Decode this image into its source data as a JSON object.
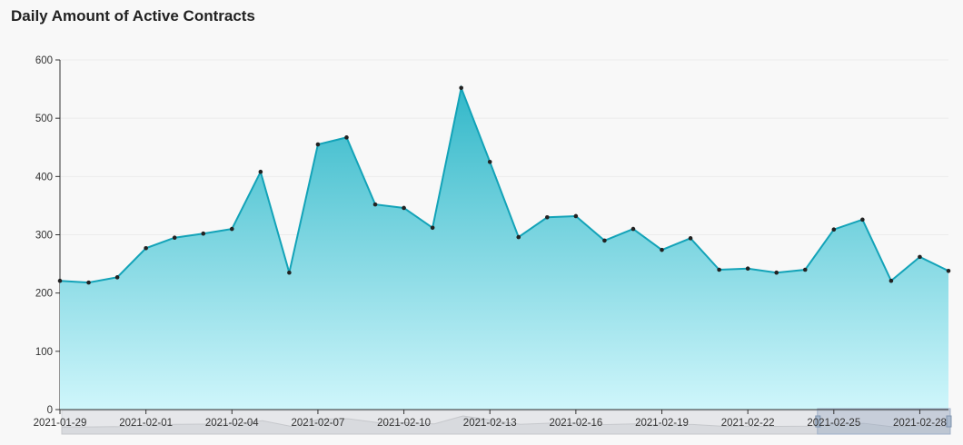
{
  "chart_data": {
    "type": "area",
    "title": "Daily Amount of Active Contracts",
    "xlabel": "",
    "ylabel": "",
    "ylim": [
      0,
      600
    ],
    "yticks": [
      0,
      100,
      200,
      300,
      400,
      500,
      600
    ],
    "xtick_labels": [
      "2021-01-29",
      "2021-02-01",
      "2021-02-04",
      "2021-02-07",
      "2021-02-10",
      "2021-02-13",
      "2021-02-16",
      "2021-02-19",
      "2021-02-22",
      "2021-02-25",
      "2021-02-28"
    ],
    "x": [
      "2021-01-29",
      "2021-01-30",
      "2021-01-31",
      "2021-02-01",
      "2021-02-02",
      "2021-02-03",
      "2021-02-04",
      "2021-02-05",
      "2021-02-06",
      "2021-02-07",
      "2021-02-08",
      "2021-02-09",
      "2021-02-10",
      "2021-02-11",
      "2021-02-12",
      "2021-02-13",
      "2021-02-14",
      "2021-02-15",
      "2021-02-16",
      "2021-02-17",
      "2021-02-18",
      "2021-02-19",
      "2021-02-20",
      "2021-02-21",
      "2021-02-22",
      "2021-02-23",
      "2021-02-24",
      "2021-02-25",
      "2021-02-26",
      "2021-02-27",
      "2021-02-28",
      "2021-03-01"
    ],
    "values": [
      221,
      218,
      227,
      277,
      295,
      302,
      310,
      408,
      235,
      455,
      467,
      352,
      346,
      312,
      552,
      425,
      296,
      330,
      332,
      290,
      310,
      274,
      294,
      240,
      242,
      235,
      240,
      309,
      326,
      221,
      262,
      238
    ],
    "grid": true,
    "colors": {
      "line": "#13a3b8",
      "fill_top": "#33b8c9",
      "fill_bottom": "#cff6fb",
      "point": "#222222"
    },
    "data_zoom": {
      "selected_start": "2021-02-25",
      "selected_end": "2021-03-01"
    }
  }
}
